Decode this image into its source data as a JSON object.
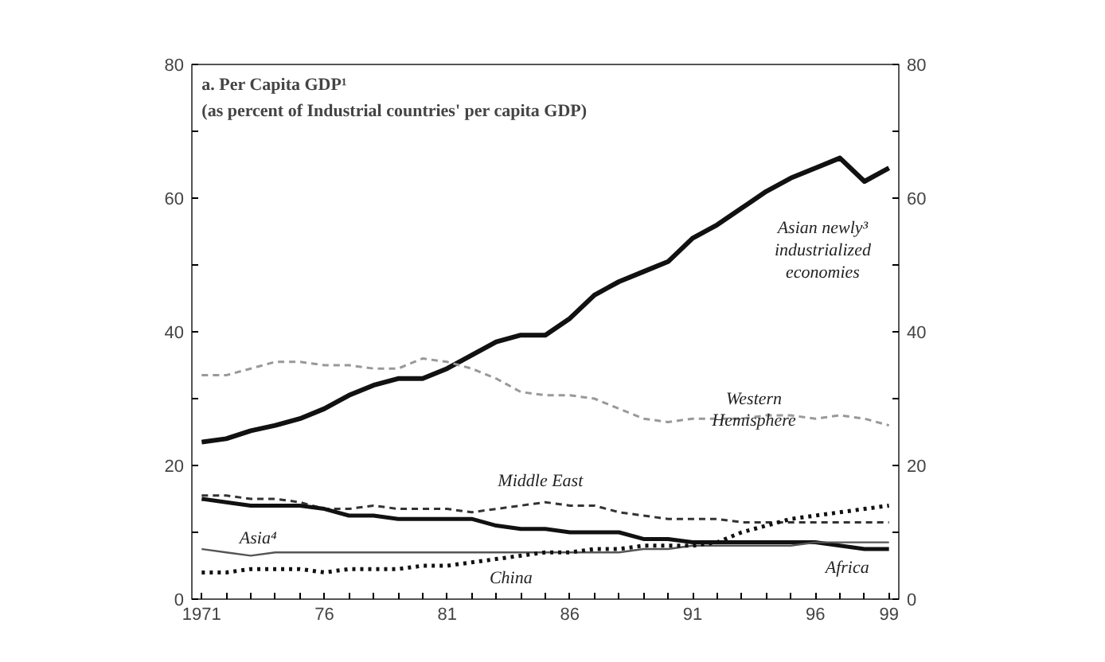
{
  "chart_data": {
    "type": "line",
    "title": "a. Per Capita GDP¹",
    "subtitle": "(as percent of Industrial countries' per capita GDP)",
    "x": [
      1971,
      1972,
      1973,
      1974,
      1975,
      1976,
      1977,
      1978,
      1979,
      1980,
      1981,
      1982,
      1983,
      1984,
      1985,
      1986,
      1987,
      1988,
      1989,
      1990,
      1991,
      1992,
      1993,
      1994,
      1995,
      1996,
      1997,
      1998,
      1999
    ],
    "series": [
      {
        "name": "Asian newly³ industrialized economies",
        "color": "#111111",
        "line_style": "solid",
        "values": [
          23.5,
          24,
          25.2,
          26,
          27,
          28.5,
          30.5,
          32,
          33,
          33,
          34.5,
          36.5,
          38.5,
          39.5,
          39.5,
          42,
          45.5,
          47.5,
          49,
          50.5,
          54,
          56,
          58.5,
          61,
          63,
          64.5,
          66,
          62.5,
          64.5
        ]
      },
      {
        "name": "Western Hemisphere",
        "color": "#999999",
        "line_style": "dashed",
        "values": [
          33.5,
          33.5,
          34.5,
          35.5,
          35.5,
          35,
          35,
          34.5,
          34.5,
          36,
          35.5,
          34.5,
          33,
          31,
          30.5,
          30.5,
          30,
          28.5,
          27,
          26.5,
          27,
          27,
          27,
          27.5,
          27.5,
          27,
          27.5,
          27,
          26
        ]
      },
      {
        "name": "Middle East",
        "color": "#333333",
        "line_style": "dashed",
        "values": [
          15.5,
          15.5,
          15,
          15,
          14.5,
          13.5,
          13.5,
          14,
          13.5,
          13.5,
          13.5,
          13,
          13.5,
          14,
          14.5,
          14,
          14,
          13,
          12.5,
          12,
          12,
          12,
          11.5,
          11.5,
          11.5,
          11.5,
          11.5,
          11.5,
          11.5
        ]
      },
      {
        "name": "Africa",
        "color": "#111111",
        "line_style": "solid",
        "values": [
          15,
          14.5,
          14,
          14,
          14,
          13.5,
          12.5,
          12.5,
          12,
          12,
          12,
          12,
          11,
          10.5,
          10.5,
          10,
          10,
          10,
          9,
          9,
          8.5,
          8.5,
          8.5,
          8.5,
          8.5,
          8.5,
          8,
          7.5,
          7.5
        ]
      },
      {
        "name": "Asia⁴",
        "color": "#555555",
        "line_style": "solid",
        "values": [
          7.5,
          7,
          6.5,
          7,
          7,
          7,
          7,
          7,
          7,
          7,
          7,
          7,
          7,
          7,
          7,
          7,
          7,
          7,
          7.5,
          7.5,
          8,
          8,
          8,
          8,
          8,
          8.5,
          8.5,
          8.5,
          8.5
        ]
      },
      {
        "name": "China",
        "color": "#111111",
        "line_style": "dotted",
        "values": [
          4,
          4,
          4.5,
          4.5,
          4.5,
          4,
          4.5,
          4.5,
          4.5,
          5,
          5,
          5.5,
          6,
          6.5,
          7,
          7,
          7.5,
          7.5,
          8,
          8,
          8,
          8.5,
          10,
          11,
          12,
          12.5,
          13,
          13.5,
          14
        ]
      }
    ],
    "xlim": [
      1970.6,
      1999.4
    ],
    "xticks": [
      {
        "value": 1971,
        "label": "1971"
      },
      {
        "value": 1972,
        "label": null
      },
      {
        "value": 1973,
        "label": null
      },
      {
        "value": 1974,
        "label": null
      },
      {
        "value": 1975,
        "label": null
      },
      {
        "value": 1976,
        "label": "76"
      },
      {
        "value": 1977,
        "label": null
      },
      {
        "value": 1978,
        "label": null
      },
      {
        "value": 1979,
        "label": null
      },
      {
        "value": 1980,
        "label": null
      },
      {
        "value": 1981,
        "label": "81"
      },
      {
        "value": 1982,
        "label": null
      },
      {
        "value": 1983,
        "label": null
      },
      {
        "value": 1984,
        "label": null
      },
      {
        "value": 1985,
        "label": null
      },
      {
        "value": 1986,
        "label": "86"
      },
      {
        "value": 1987,
        "label": null
      },
      {
        "value": 1988,
        "label": null
      },
      {
        "value": 1989,
        "label": null
      },
      {
        "value": 1990,
        "label": null
      },
      {
        "value": 1991,
        "label": "91"
      },
      {
        "value": 1992,
        "label": null
      },
      {
        "value": 1993,
        "label": null
      },
      {
        "value": 1994,
        "label": null
      },
      {
        "value": 1995,
        "label": null
      },
      {
        "value": 1996,
        "label": "96"
      },
      {
        "value": 1997,
        "label": null
      },
      {
        "value": 1998,
        "label": null
      },
      {
        "value": 1999,
        "label": "99"
      }
    ],
    "ylim": [
      0,
      80
    ],
    "yticks": [
      0,
      {
        "value": 10,
        "label": null
      },
      20,
      {
        "value": 30,
        "label": null
      },
      40,
      {
        "value": 50,
        "label": null
      },
      60,
      {
        "value": 70,
        "label": null
      },
      80
    ],
    "y2lim": [
      0,
      80
    ],
    "y2ticks": [
      0,
      {
        "value": 10,
        "label": null
      },
      20,
      {
        "value": 30,
        "label": null
      },
      40,
      {
        "value": 50,
        "label": null
      },
      60,
      {
        "value": 70,
        "label": null
      },
      80
    ],
    "grid": false
  }
}
